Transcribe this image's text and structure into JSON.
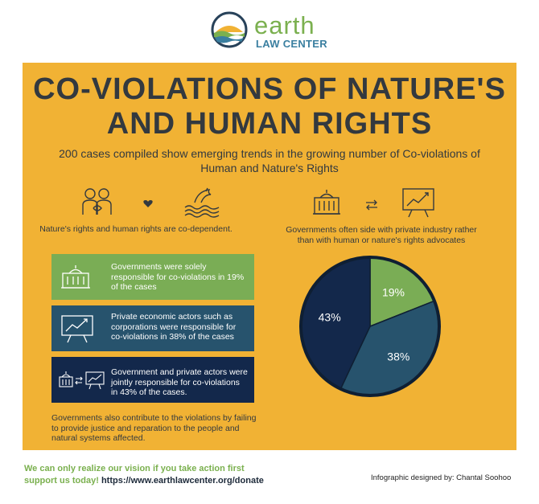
{
  "logo": {
    "word": "earth",
    "sub": "LAW CENTER"
  },
  "title_line1": "CO-VIOLATIONS OF NATURE'S",
  "title_line2": "AND HUMAN RIGHTS",
  "subtitle": "200 cases compiled show emerging trends in the growing number of Co-violations of Human and Nature's Rights",
  "left_caption": "Nature's rights and human rights are co-dependent.",
  "right_caption": "Governments often side with private industry rather than with human or nature's rights advocates",
  "boxes": [
    {
      "text": "Governments were solely responsible for co-violations in 19% of the cases",
      "color": "#7aad55"
    },
    {
      "text": "Private economic actors such as corporations were responsible for co-violations in 38% of the cases",
      "color": "#27536d"
    },
    {
      "text": "Government and private actors were jointly responsible for co-violations in 43% of the cases.",
      "color": "#13284b"
    }
  ],
  "note": "Governments also contribute to the violations by failing to provide justice and reparation to the people and natural systems affected.",
  "footer": {
    "line1": "We can only realize our vision if you take action first",
    "line2_prefix": "support us today!",
    "url": "https://www.earthlawcenter.org/donate",
    "credit": "Infographic designed by: Chantal Soohoo"
  },
  "icons": [
    "people-icon",
    "heart-icon",
    "dolphin-icon",
    "government-building-icon",
    "exchange-arrows-icon",
    "growth-chart-icon"
  ],
  "chart_data": {
    "type": "pie",
    "categories": [
      "Government only",
      "Private economic actors",
      "Government and private actors"
    ],
    "values": [
      19,
      38,
      43
    ],
    "labels": [
      "19%",
      "38%",
      "43%"
    ],
    "colors": [
      "#7aad55",
      "#27536d",
      "#13284b"
    ]
  }
}
